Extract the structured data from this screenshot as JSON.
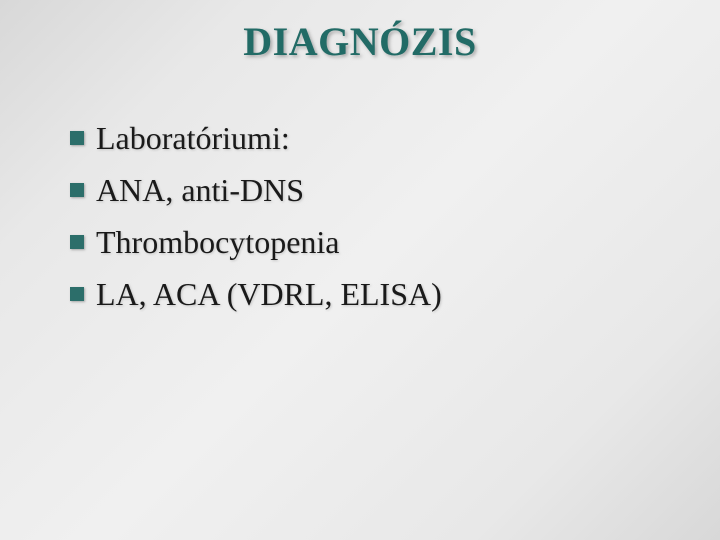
{
  "slide": {
    "title": "DIAGNÓZIS",
    "title_color": "#226b66",
    "title_fontsize": 40,
    "bullets": [
      {
        "text": "Laboratóriumi:"
      },
      {
        "text": "ANA, anti-DNS"
      },
      {
        "text": "Thrombocytopenia"
      },
      {
        "text": "LA, ACA (VDRL, ELISA)"
      }
    ],
    "bullet_marker_color": "#2c6e6a",
    "bullet_marker_size": 14,
    "bullet_fontsize": 32,
    "bullet_line_height": 46,
    "body_text_color": "#1a1a1a",
    "background_gradient": {
      "from": "#d8d8d8",
      "mid": "#f0f0f0",
      "to": "#d8d8d8"
    }
  }
}
